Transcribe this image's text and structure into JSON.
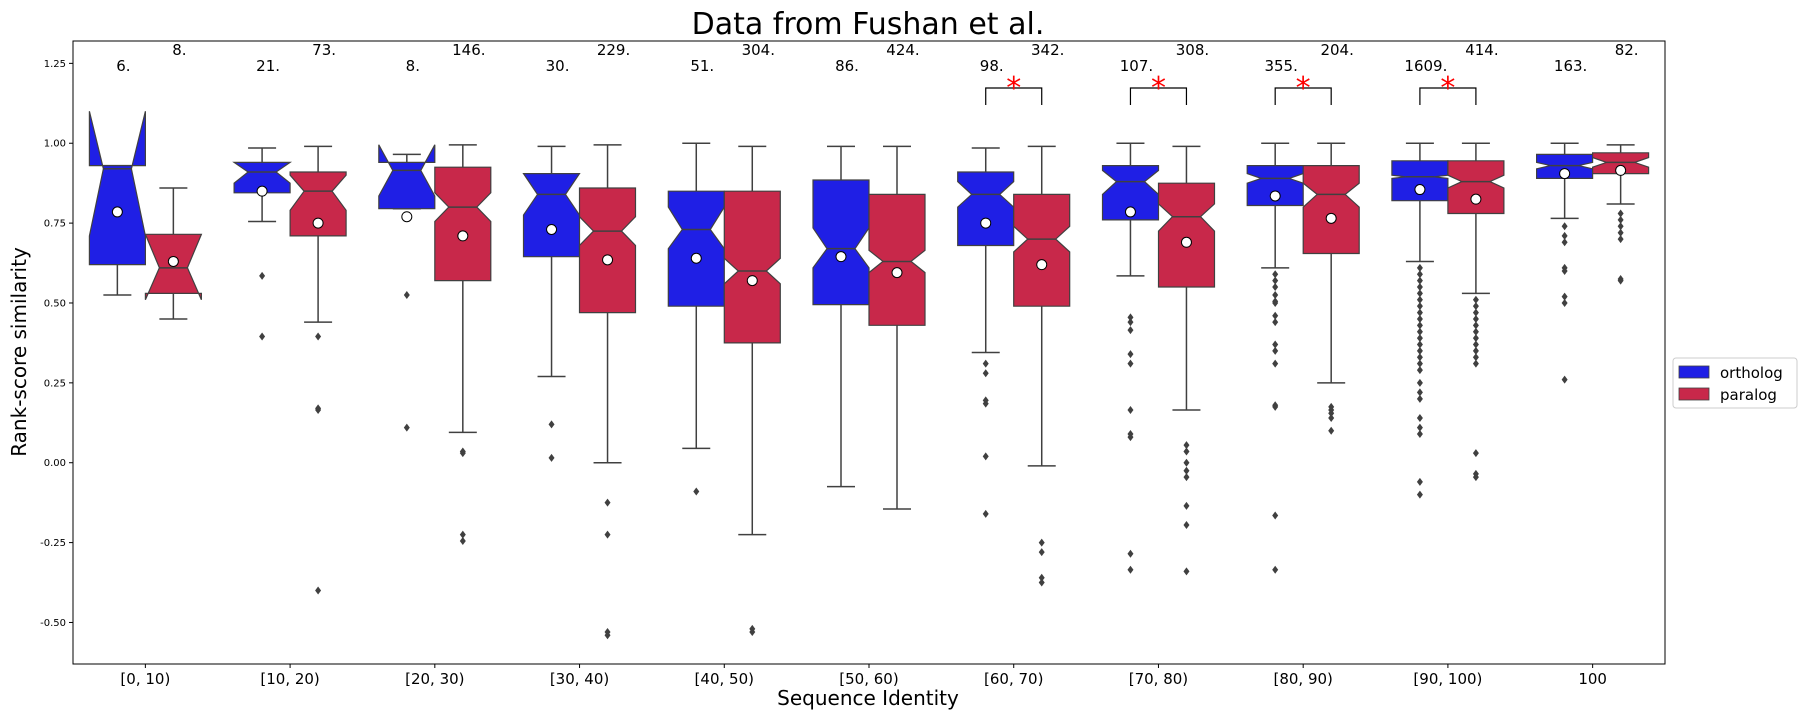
{
  "chart_data": {
    "type": "boxplot",
    "title": "Data from Fushan et al.",
    "xlabel": "Sequence Identity",
    "ylabel": "Rank-score similarity",
    "ylim": [
      -0.63,
      1.32
    ],
    "yticks": [
      "-0.50",
      "-0.25",
      "0.00",
      "0.25",
      "0.50",
      "0.75",
      "1.00",
      "1.25"
    ],
    "ytick_values": [
      -0.5,
      -0.25,
      0.0,
      0.25,
      0.5,
      0.75,
      1.0,
      1.25
    ],
    "categories": [
      "[0, 10)",
      "[10, 20)",
      "[20, 30)",
      "[30, 40)",
      "[40, 50)",
      "[50, 60)",
      "[60, 70)",
      "[70, 80)",
      "[80, 90)",
      "[90, 100)",
      "100"
    ],
    "grid": false,
    "notched": true,
    "legend_position": "right",
    "significance_marker": "*",
    "significant_categories": [
      6,
      7,
      8,
      9
    ],
    "series": [
      {
        "name": "ortholog",
        "color": "#1f1fe5",
        "counts": [
          "6.",
          "21.",
          "8.",
          "30.",
          "51.",
          "86.",
          "98.",
          "107.",
          "355.",
          "1609.",
          "163."
        ],
        "boxes": [
          {
            "q1": 0.62,
            "median": 0.92,
            "q3": 0.93,
            "notch_lo": 0.71,
            "notch_hi": 1.1,
            "wlo": 0.525,
            "whi": 0.93,
            "mean": 0.785,
            "outliers": []
          },
          {
            "q1": 0.845,
            "median": 0.91,
            "q3": 0.94,
            "notch_lo": 0.875,
            "notch_hi": 0.94,
            "wlo": 0.755,
            "whi": 0.985,
            "mean": 0.85,
            "outliers": [
              0.585,
              0.395
            ]
          },
          {
            "q1": 0.795,
            "median": 0.915,
            "q3": 0.94,
            "notch_lo": 0.835,
            "notch_hi": 0.995,
            "wlo": 0.795,
            "whi": 0.965,
            "mean": 0.77,
            "outliers": [
              0.525,
              0.11
            ]
          },
          {
            "q1": 0.645,
            "median": 0.84,
            "q3": 0.905,
            "notch_lo": 0.775,
            "notch_hi": 0.905,
            "wlo": 0.27,
            "whi": 0.99,
            "mean": 0.73,
            "outliers": [
              0.12,
              0.015
            ]
          },
          {
            "q1": 0.49,
            "median": 0.73,
            "q3": 0.85,
            "notch_lo": 0.67,
            "notch_hi": 0.8,
            "wlo": 0.045,
            "whi": 1.0,
            "mean": 0.64,
            "outliers": [
              -0.09
            ]
          },
          {
            "q1": 0.495,
            "median": 0.67,
            "q3": 0.885,
            "notch_lo": 0.61,
            "notch_hi": 0.735,
            "wlo": -0.075,
            "whi": 0.99,
            "mean": 0.645,
            "outliers": []
          },
          {
            "q1": 0.68,
            "median": 0.84,
            "q3": 0.91,
            "notch_lo": 0.8,
            "notch_hi": 0.88,
            "wlo": 0.345,
            "whi": 0.985,
            "mean": 0.75,
            "outliers": [
              0.31,
              0.28,
              0.195,
              0.185,
              0.02,
              -0.16
            ]
          },
          {
            "q1": 0.76,
            "median": 0.88,
            "q3": 0.93,
            "notch_lo": 0.84,
            "notch_hi": 0.915,
            "wlo": 0.585,
            "whi": 1.0,
            "mean": 0.785,
            "outliers": [
              0.455,
              0.44,
              0.415,
              0.34,
              0.31,
              0.165,
              0.09,
              0.08,
              -0.285,
              -0.335
            ]
          },
          {
            "q1": 0.805,
            "median": 0.89,
            "q3": 0.93,
            "notch_lo": 0.875,
            "notch_hi": 0.905,
            "wlo": 0.61,
            "whi": 1.0,
            "mean": 0.835,
            "outliers": [
              0.59,
              0.57,
              0.55,
              0.525,
              0.505,
              0.5,
              0.46,
              0.44,
              0.37,
              0.35,
              0.31,
              0.18,
              0.175,
              -0.165,
              -0.335
            ]
          },
          {
            "q1": 0.82,
            "median": 0.895,
            "q3": 0.945,
            "notch_lo": 0.89,
            "notch_hi": 0.9,
            "wlo": 0.63,
            "whi": 1.0,
            "mean": 0.855,
            "outliers": [
              0.61,
              0.59,
              0.57,
              0.55,
              0.53,
              0.51,
              0.49,
              0.47,
              0.45,
              0.43,
              0.41,
              0.39,
              0.37,
              0.35,
              0.33,
              0.31,
              0.29,
              0.25,
              0.22,
              0.2,
              0.14,
              0.11,
              0.09,
              -0.06,
              -0.1
            ]
          },
          {
            "q1": 0.89,
            "median": 0.93,
            "q3": 0.965,
            "notch_lo": 0.92,
            "notch_hi": 0.94,
            "wlo": 0.765,
            "whi": 1.0,
            "mean": 0.905,
            "outliers": [
              0.74,
              0.71,
              0.69,
              0.61,
              0.6,
              0.52,
              0.5,
              0.26
            ]
          }
        ]
      },
      {
        "name": "paralog",
        "color": "#c8284a",
        "counts": [
          "8.",
          "73.",
          "146.",
          "229.",
          "304.",
          "424.",
          "342.",
          "308.",
          "204.",
          "414.",
          "82."
        ],
        "boxes": [
          {
            "q1": 0.53,
            "median": 0.61,
            "q3": 0.715,
            "notch_lo": 0.51,
            "notch_hi": 0.715,
            "wlo": 0.45,
            "whi": 0.86,
            "mean": 0.63,
            "outliers": []
          },
          {
            "q1": 0.71,
            "median": 0.85,
            "q3": 0.91,
            "notch_lo": 0.79,
            "notch_hi": 0.9,
            "wlo": 0.44,
            "whi": 0.99,
            "mean": 0.75,
            "outliers": [
              0.395,
              0.17,
              0.165,
              -0.4
            ]
          },
          {
            "q1": 0.57,
            "median": 0.8,
            "q3": 0.925,
            "notch_lo": 0.755,
            "notch_hi": 0.845,
            "wlo": 0.095,
            "whi": 0.995,
            "mean": 0.71,
            "outliers": [
              0.035,
              0.03,
              -0.225,
              -0.245
            ]
          },
          {
            "q1": 0.47,
            "median": 0.725,
            "q3": 0.86,
            "notch_lo": 0.68,
            "notch_hi": 0.77,
            "wlo": 0.0,
            "whi": 0.995,
            "mean": 0.635,
            "outliers": [
              -0.125,
              -0.225,
              -0.53,
              -0.54
            ]
          },
          {
            "q1": 0.375,
            "median": 0.6,
            "q3": 0.85,
            "notch_lo": 0.56,
            "notch_hi": 0.64,
            "wlo": -0.225,
            "whi": 0.99,
            "mean": 0.57,
            "outliers": [
              -0.52,
              -0.53
            ]
          },
          {
            "q1": 0.43,
            "median": 0.63,
            "q3": 0.84,
            "notch_lo": 0.595,
            "notch_hi": 0.665,
            "wlo": -0.145,
            "whi": 0.99,
            "mean": 0.595,
            "outliers": []
          },
          {
            "q1": 0.49,
            "median": 0.7,
            "q3": 0.84,
            "notch_lo": 0.66,
            "notch_hi": 0.74,
            "wlo": -0.01,
            "whi": 0.99,
            "mean": 0.62,
            "outliers": [
              -0.25,
              -0.28,
              -0.36,
              -0.375
            ]
          },
          {
            "q1": 0.55,
            "median": 0.77,
            "q3": 0.875,
            "notch_lo": 0.725,
            "notch_hi": 0.81,
            "wlo": 0.165,
            "whi": 0.99,
            "mean": 0.69,
            "outliers": [
              0.055,
              0.035,
              0.0,
              -0.025,
              -0.045,
              -0.135,
              -0.195,
              -0.34
            ]
          },
          {
            "q1": 0.655,
            "median": 0.84,
            "q3": 0.93,
            "notch_lo": 0.8,
            "notch_hi": 0.875,
            "wlo": 0.25,
            "whi": 1.0,
            "mean": 0.765,
            "outliers": [
              0.175,
              0.165,
              0.155,
              0.14,
              0.1
            ]
          },
          {
            "q1": 0.78,
            "median": 0.88,
            "q3": 0.945,
            "notch_lo": 0.86,
            "notch_hi": 0.9,
            "wlo": 0.53,
            "whi": 1.0,
            "mean": 0.825,
            "outliers": [
              0.51,
              0.49,
              0.47,
              0.45,
              0.43,
              0.41,
              0.39,
              0.37,
              0.35,
              0.33,
              0.31,
              0.03,
              -0.035,
              -0.045
            ]
          },
          {
            "q1": 0.905,
            "median": 0.94,
            "q3": 0.97,
            "notch_lo": 0.925,
            "notch_hi": 0.955,
            "wlo": 0.81,
            "whi": 0.995,
            "mean": 0.915,
            "outliers": [
              0.78,
              0.76,
              0.74,
              0.72,
              0.7,
              0.575,
              0.57
            ]
          }
        ]
      }
    ]
  }
}
